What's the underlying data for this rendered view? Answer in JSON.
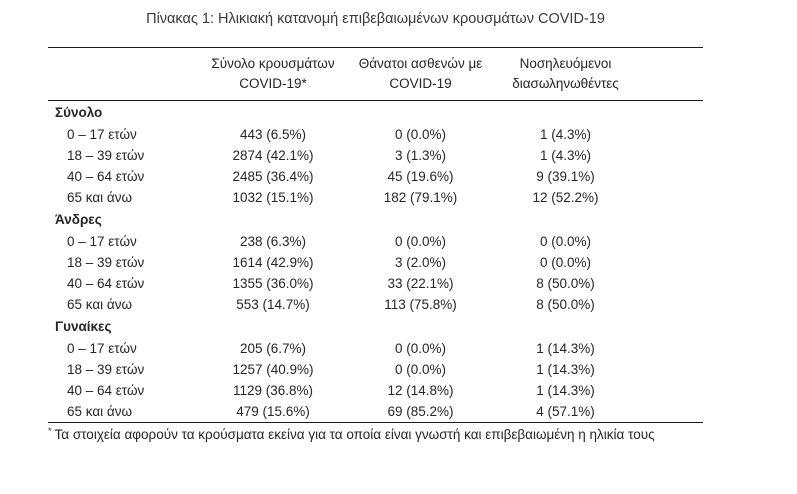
{
  "title": "Πίνακας 1: Ηλικιακή κατανομή επιβεβαιωμένων κρουσμάτων COVID-19",
  "colors": {
    "background": "#ffffff",
    "text": "#262626",
    "border": "#1a1a1a"
  },
  "table": {
    "columns": [
      {
        "line1": "Σύνολο κρουσμάτων",
        "line2": "COVID-19*"
      },
      {
        "line1": "Θάνατοι ασθενών με",
        "line2": "COVID-19"
      },
      {
        "line1": "Νοσηλευόμενοι",
        "line2": "διασωληνωθέντες"
      }
    ],
    "groups": [
      {
        "label": "Σύνολο",
        "rows": [
          {
            "age": "0 – 17 ετών",
            "cases": "443 (6.5%)",
            "deaths": "0 (0.0%)",
            "intubated": "1 (4.3%)"
          },
          {
            "age": "18 – 39 ετών",
            "cases": "2874 (42.1%)",
            "deaths": "3 (1.3%)",
            "intubated": "1 (4.3%)"
          },
          {
            "age": "40 – 64 ετών",
            "cases": "2485 (36.4%)",
            "deaths": "45 (19.6%)",
            "intubated": "9 (39.1%)"
          },
          {
            "age": "65 και άνω",
            "cases": "1032 (15.1%)",
            "deaths": "182 (79.1%)",
            "intubated": "12 (52.2%)"
          }
        ]
      },
      {
        "label": "Άνδρες",
        "rows": [
          {
            "age": "0 – 17 ετών",
            "cases": "238 (6.3%)",
            "deaths": "0 (0.0%)",
            "intubated": "0 (0.0%)"
          },
          {
            "age": "18 – 39 ετών",
            "cases": "1614 (42.9%)",
            "deaths": "3 (2.0%)",
            "intubated": "0 (0.0%)"
          },
          {
            "age": "40 – 64 ετών",
            "cases": "1355 (36.0%)",
            "deaths": "33 (22.1%)",
            "intubated": "8 (50.0%)"
          },
          {
            "age": "65 και άνω",
            "cases": "553 (14.7%)",
            "deaths": "113 (75.8%)",
            "intubated": "8 (50.0%)"
          }
        ]
      },
      {
        "label": "Γυναίκες",
        "rows": [
          {
            "age": "0 – 17 ετών",
            "cases": "205 (6.7%)",
            "deaths": "0 (0.0%)",
            "intubated": "1 (14.3%)"
          },
          {
            "age": "18 – 39 ετών",
            "cases": "1257 (40.9%)",
            "deaths": "0 (0.0%)",
            "intubated": "1 (14.3%)"
          },
          {
            "age": "40 – 64 ετών",
            "cases": "1129 (36.8%)",
            "deaths": "12 (14.8%)",
            "intubated": "1 (14.3%)"
          },
          {
            "age": "65 και άνω",
            "cases": "479 (15.6%)",
            "deaths": "69 (85.2%)",
            "intubated": "4 (57.1%)"
          }
        ]
      }
    ],
    "footnote_marker": "*",
    "footnote": "Τα στοιχεία αφορούν τα κρούσματα εκείνα για τα οποία είναι γνωστή και επιβεβαιωμένη η ηλικία τους"
  }
}
